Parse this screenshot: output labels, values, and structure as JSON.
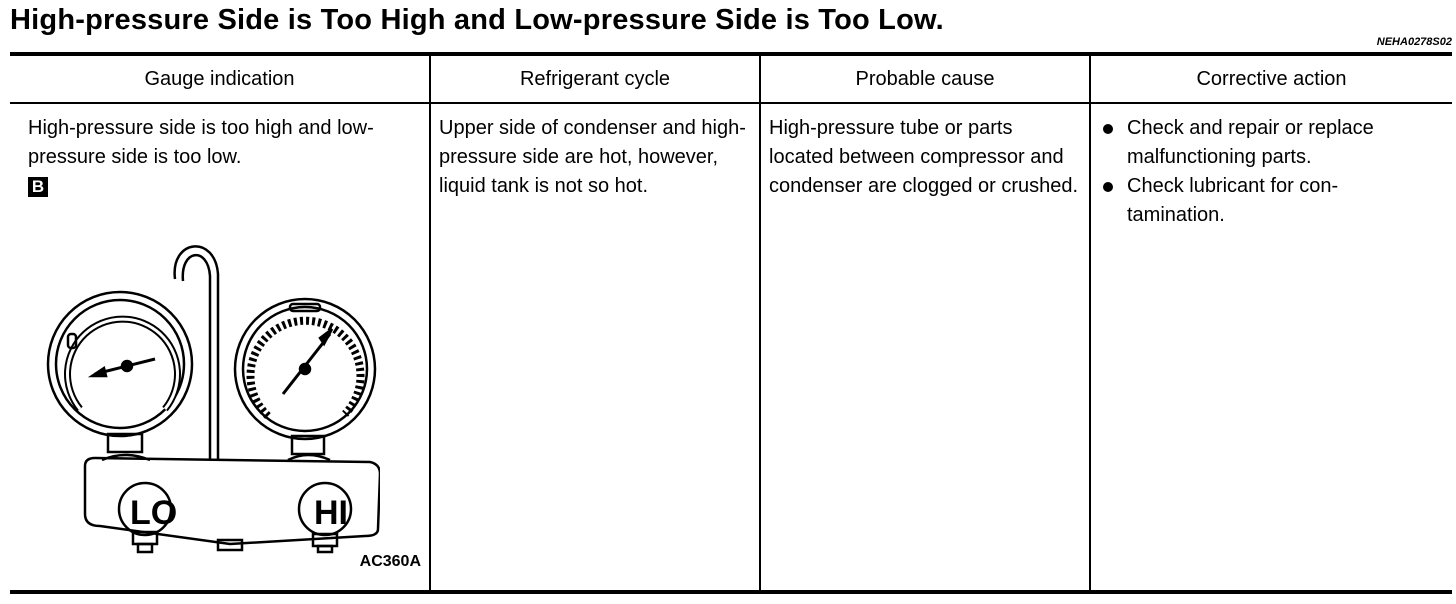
{
  "title": "High-pressure Side is Too High and Low-pressure Side is Too Low.",
  "code": "NEHA0278S02",
  "table": {
    "headers": [
      "Gauge indication",
      "Refrigerant cycle",
      "Probable cause",
      "Corrective action"
    ],
    "row": {
      "gauge_indication": "High-pressure side is too high and low-pressure side is too low.",
      "badge": "B",
      "figure_label": "AC360A",
      "gauge_lo": "LO",
      "gauge_hi": "HI",
      "refrigerant_cycle": "Upper side of condenser and high-pressure side are hot, however, liquid tank is not so hot.",
      "probable_cause": "High-pressure tube or parts located between compressor and condenser are clogged or crushed.",
      "corrective_actions": [
        "Check and repair or replace malfunctioning parts.",
        "Check lubricant for con-tamination."
      ]
    }
  }
}
